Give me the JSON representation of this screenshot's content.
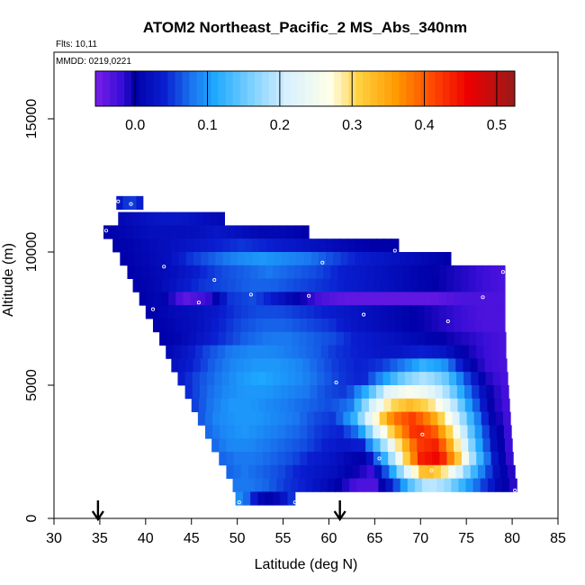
{
  "chart_data": {
    "type": "heatmap",
    "title": "ATOM2 Northeast_Pacific_2 MS_Abs_340nm",
    "subtitle_lines": [
      "Flts: 10,11",
      "MMDD: 0219,0221"
    ],
    "xlabel": "Latitude (deg N)",
    "ylabel": "Altitude (m)",
    "xlim": [
      30,
      85
    ],
    "ylim": [
      0,
      17500
    ],
    "xticks": [
      30,
      35,
      40,
      45,
      50,
      55,
      60,
      65,
      70,
      75,
      80,
      85
    ],
    "yticks": [
      0,
      5000,
      10000,
      15000
    ],
    "colorbar": {
      "range": [
        -0.055,
        0.525
      ],
      "ticks": [
        "0.0",
        "0.1",
        "0.2",
        "0.3",
        "0.4",
        "0.5"
      ],
      "tick_values": [
        0.0,
        0.1,
        0.2,
        0.3,
        0.4,
        0.5
      ],
      "stops": [
        {
          "v": -0.055,
          "c": "#7a1ee8"
        },
        {
          "v": -0.02,
          "c": "#3a0ed8"
        },
        {
          "v": 0.0,
          "c": "#0000a8"
        },
        {
          "v": 0.04,
          "c": "#0a1ed0"
        },
        {
          "v": 0.08,
          "c": "#1a78f0"
        },
        {
          "v": 0.11,
          "c": "#1ea8ff"
        },
        {
          "v": 0.16,
          "c": "#7ad0ff"
        },
        {
          "v": 0.21,
          "c": "#d8f0ff"
        },
        {
          "v": 0.27,
          "c": "#ffffe8"
        },
        {
          "v": 0.31,
          "c": "#ffd040"
        },
        {
          "v": 0.36,
          "c": "#ff9a00"
        },
        {
          "v": 0.41,
          "c": "#ff4a00"
        },
        {
          "v": 0.46,
          "c": "#ee0000"
        },
        {
          "v": 0.525,
          "c": "#9a1a1a"
        }
      ]
    },
    "flight_path_markers_lat": [
      34.8,
      61.2
    ],
    "altitude_bins": [
      {
        "alt": 11850,
        "lat": [
          36.8,
          39.7
        ],
        "v": [
          0.02,
          0.06,
          0.03
        ]
      },
      {
        "alt": 11250,
        "lat": [
          37.0,
          48.6
        ],
        "v": [
          0.01,
          0.02,
          0.03,
          0.03,
          0.02,
          0.01
        ]
      },
      {
        "alt": 10750,
        "lat": [
          35.4,
          57.8
        ],
        "v": [
          0.0,
          0.01,
          0.02,
          0.02,
          0.02,
          0.03,
          0.02,
          0.01,
          0.01,
          0.0
        ]
      },
      {
        "alt": 10250,
        "lat": [
          36.4,
          67.6
        ],
        "v": [
          0.0,
          0.01,
          0.02,
          0.03,
          0.04,
          0.05,
          0.04,
          0.03,
          0.02,
          0.01,
          0.0,
          0.0
        ]
      },
      {
        "alt": 9750,
        "lat": [
          37.2,
          73.3
        ],
        "v": [
          0.0,
          0.01,
          0.02,
          0.05,
          0.07,
          0.09,
          0.1,
          0.09,
          0.08,
          0.06,
          0.04,
          0.03,
          0.02,
          0.01,
          0.0
        ]
      },
      {
        "alt": 9250,
        "lat": [
          38.0,
          79.2
        ],
        "v": [
          0.0,
          0.01,
          0.02,
          0.04,
          0.06,
          0.07,
          0.08,
          0.07,
          0.06,
          0.04,
          0.03,
          0.02,
          0.01,
          0.0,
          -0.01,
          -0.02,
          -0.03
        ]
      },
      {
        "alt": 8750,
        "lat": [
          38.6,
          79.2
        ],
        "v": [
          0.0,
          0.01,
          0.03,
          0.05,
          0.06,
          0.07,
          0.07,
          0.06,
          0.05,
          0.04,
          0.03,
          0.02,
          0.01,
          0.0,
          -0.01,
          -0.02,
          -0.03
        ]
      },
      {
        "alt": 8250,
        "lat": [
          39.3,
          79.2
        ],
        "v": [
          0.0,
          0.01,
          -0.04,
          -0.02,
          0.05,
          0.06,
          0.03,
          0.0,
          -0.03,
          -0.04,
          -0.04,
          -0.04,
          -0.04,
          -0.04,
          -0.03,
          -0.03,
          -0.03
        ]
      },
      {
        "alt": 7750,
        "lat": [
          40.0,
          79.2
        ],
        "v": [
          0.0,
          0.01,
          0.02,
          0.03,
          0.05,
          0.06,
          0.06,
          0.05,
          0.04,
          0.03,
          0.02,
          0.01,
          0.0,
          -0.01,
          -0.02,
          -0.03,
          -0.03
        ]
      },
      {
        "alt": 7250,
        "lat": [
          40.8,
          79.2
        ],
        "v": [
          0.0,
          0.01,
          0.02,
          0.04,
          0.06,
          0.07,
          0.07,
          0.06,
          0.05,
          0.03,
          0.02,
          0.01,
          0.0,
          -0.01,
          -0.02,
          -0.03,
          -0.03
        ]
      },
      {
        "alt": 6750,
        "lat": [
          41.5,
          79.3
        ],
        "v": [
          0.0,
          0.01,
          0.03,
          0.05,
          0.07,
          0.08,
          0.08,
          0.07,
          0.06,
          0.04,
          0.03,
          0.02,
          0.01,
          0.0,
          -0.01,
          -0.02,
          -0.03
        ]
      },
      {
        "alt": 6250,
        "lat": [
          42.2,
          79.3
        ],
        "v": [
          0.01,
          0.03,
          0.06,
          0.08,
          0.09,
          0.09,
          0.08,
          0.07,
          0.05,
          0.04,
          0.03,
          0.03,
          0.04,
          0.03,
          0.0,
          -0.02,
          -0.03
        ]
      },
      {
        "alt": 5750,
        "lat": [
          42.8,
          79.4
        ],
        "v": [
          0.02,
          0.04,
          0.07,
          0.09,
          0.1,
          0.1,
          0.09,
          0.07,
          0.05,
          0.04,
          0.05,
          0.08,
          0.12,
          0.1,
          0.02,
          -0.02,
          -0.03
        ]
      },
      {
        "alt": 5250,
        "lat": [
          43.5,
          79.5
        ],
        "v": [
          0.03,
          0.06,
          0.08,
          0.1,
          0.11,
          0.1,
          0.09,
          0.07,
          0.05,
          0.04,
          0.1,
          0.16,
          0.19,
          0.15,
          0.06,
          -0.01,
          -0.03
        ]
      },
      {
        "alt": 4750,
        "lat": [
          44.3,
          79.6
        ],
        "v": [
          0.04,
          0.07,
          0.09,
          0.1,
          0.1,
          0.09,
          0.08,
          0.06,
          0.05,
          0.12,
          0.22,
          0.26,
          0.24,
          0.18,
          0.08,
          0.0,
          -0.03
        ]
      },
      {
        "alt": 4250,
        "lat": [
          45.0,
          79.7
        ],
        "v": [
          0.05,
          0.08,
          0.1,
          0.1,
          0.09,
          0.08,
          0.07,
          0.06,
          0.08,
          0.2,
          0.3,
          0.33,
          0.3,
          0.22,
          0.1,
          0.0,
          -0.03
        ]
      },
      {
        "alt": 3750,
        "lat": [
          45.7,
          79.8
        ],
        "v": [
          0.06,
          0.09,
          0.1,
          0.1,
          0.09,
          0.08,
          0.06,
          0.05,
          0.12,
          0.26,
          0.38,
          0.42,
          0.36,
          0.25,
          0.12,
          0.01,
          -0.03
        ]
      },
      {
        "alt": 3250,
        "lat": [
          46.5,
          79.9
        ],
        "v": [
          0.07,
          0.09,
          0.1,
          0.09,
          0.08,
          0.07,
          0.05,
          0.04,
          0.08,
          0.22,
          0.34,
          0.44,
          0.4,
          0.28,
          0.13,
          0.02,
          -0.03
        ]
      },
      {
        "alt": 2750,
        "lat": [
          47.2,
          80.0
        ],
        "v": [
          0.07,
          0.09,
          0.09,
          0.08,
          0.07,
          0.06,
          0.04,
          0.03,
          0.04,
          0.16,
          0.3,
          0.42,
          0.44,
          0.3,
          0.14,
          0.02,
          -0.03
        ]
      },
      {
        "alt": 2250,
        "lat": [
          48.0,
          80.1
        ],
        "v": [
          0.07,
          0.08,
          0.08,
          0.07,
          0.06,
          0.04,
          0.03,
          0.01,
          0.0,
          0.12,
          0.28,
          0.44,
          0.46,
          0.32,
          0.15,
          0.03,
          -0.03
        ]
      },
      {
        "alt": 1750,
        "lat": [
          48.8,
          80.3
        ],
        "v": [
          0.07,
          0.08,
          0.07,
          0.06,
          0.04,
          0.03,
          0.02,
          0.0,
          -0.02,
          0.08,
          0.22,
          0.34,
          0.3,
          0.2,
          0.1,
          0.02,
          -0.02
        ]
      },
      {
        "alt": 1250,
        "lat": [
          49.5,
          80.5
        ],
        "v": [
          0.08,
          0.08,
          0.07,
          0.05,
          0.04,
          0.02,
          0.0,
          -0.03,
          -0.03,
          0.04,
          0.14,
          0.2,
          0.18,
          0.12,
          0.06,
          0.01,
          -0.02
        ]
      },
      {
        "alt": 750,
        "lat": [
          49.8,
          56.3
        ],
        "v": [
          0.1,
          0.08,
          0.03,
          0.0,
          0.01,
          0.03,
          0.06
        ]
      }
    ],
    "segment_markers": [
      {
        "lat": 37.0,
        "alt": 11900
      },
      {
        "lat": 38.4,
        "alt": 11800
      },
      {
        "lat": 35.7,
        "alt": 10800
      },
      {
        "lat": 67.2,
        "alt": 10050
      },
      {
        "lat": 59.3,
        "alt": 9600
      },
      {
        "lat": 42.0,
        "alt": 9450
      },
      {
        "lat": 79.0,
        "alt": 9250
      },
      {
        "lat": 47.5,
        "alt": 8950
      },
      {
        "lat": 51.5,
        "alt": 8400
      },
      {
        "lat": 57.8,
        "alt": 8350
      },
      {
        "lat": 76.8,
        "alt": 8300
      },
      {
        "lat": 45.8,
        "alt": 8100
      },
      {
        "lat": 40.8,
        "alt": 7850
      },
      {
        "lat": 63.8,
        "alt": 7650
      },
      {
        "lat": 73.0,
        "alt": 7400
      },
      {
        "lat": 60.8,
        "alt": 5100
      },
      {
        "lat": 70.2,
        "alt": 3150
      },
      {
        "lat": 65.5,
        "alt": 2250
      },
      {
        "lat": 71.2,
        "alt": 1800
      },
      {
        "lat": 80.3,
        "alt": 1050
      },
      {
        "lat": 50.2,
        "alt": 600
      },
      {
        "lat": 56.3,
        "alt": 600
      }
    ]
  }
}
